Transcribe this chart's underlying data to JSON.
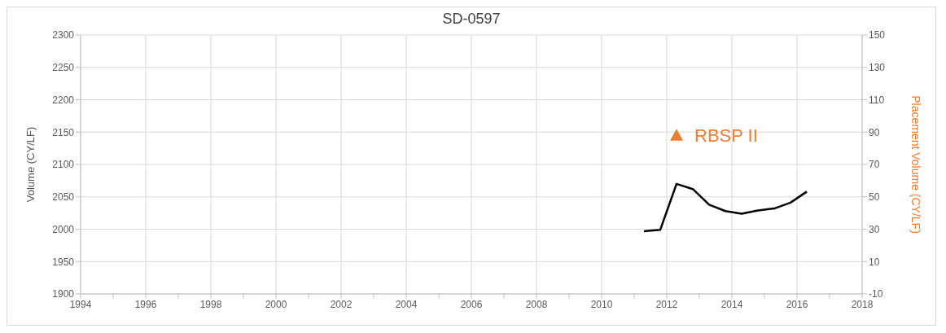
{
  "chart_data": {
    "type": "line",
    "title": "SD-0597",
    "ylabel": "Volume (CY/LF)",
    "y2label": "Placement Volume (CY/LF)",
    "xlim": [
      1994,
      2018
    ],
    "xticks": [
      1994,
      {
        "value": 1995,
        "label": null
      },
      1996,
      {
        "value": 1997,
        "label": null
      },
      1998,
      {
        "value": 1999,
        "label": null
      },
      2000,
      {
        "value": 2001,
        "label": null
      },
      2002,
      {
        "value": 2003,
        "label": null
      },
      2004,
      {
        "value": 2005,
        "label": null
      },
      2006,
      {
        "value": 2007,
        "label": null
      },
      2008,
      {
        "value": 2009,
        "label": null
      },
      2010,
      {
        "value": 2011,
        "label": null
      },
      2012,
      {
        "value": 2013,
        "label": null
      },
      2014,
      {
        "value": 2015,
        "label": null
      },
      2016,
      {
        "value": 2017,
        "label": null
      },
      2018
    ],
    "ylim": [
      1900,
      2300
    ],
    "yticks": [
      1900,
      1950,
      2000,
      2050,
      2100,
      2150,
      2200,
      2250,
      2300
    ],
    "y2lim": [
      -10,
      150
    ],
    "y2ticks": [
      -10,
      10,
      30,
      50,
      70,
      90,
      110,
      130,
      150
    ],
    "grid": true,
    "legend": false,
    "series": [
      {
        "color": "#000000",
        "marker": "none",
        "x": [
          2011.3,
          2011.8,
          2012.3,
          2012.8,
          2013.3,
          2013.8,
          2014.3,
          2014.8,
          2015.3,
          2015.8,
          2016.3
        ],
        "values": [
          1997,
          1999,
          2070,
          2062,
          2038,
          2028,
          2024,
          2029,
          2032,
          2041,
          2058
        ]
      },
      {
        "type": "scatter",
        "name": "RBSP II",
        "color": "#ed7d31",
        "marker": "triangle",
        "axis": "y2",
        "x": [
          2012.3
        ],
        "values": [
          88
        ]
      }
    ]
  }
}
